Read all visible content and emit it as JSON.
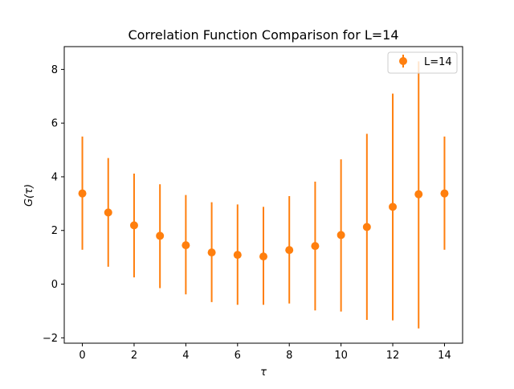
{
  "chart_data": {
    "type": "scatter",
    "title": "Correlation Function Comparison for L=14",
    "xlabel": "τ",
    "ylabel": "G(τ)",
    "xlim": [
      -0.7,
      14.7
    ],
    "ylim": [
      -2.2,
      8.85
    ],
    "xticks": [
      0,
      2,
      4,
      6,
      8,
      10,
      12,
      14
    ],
    "yticks": [
      -2,
      0,
      2,
      4,
      6,
      8
    ],
    "xtick_labels": [
      "0",
      "2",
      "4",
      "6",
      "8",
      "10",
      "12",
      "14"
    ],
    "ytick_labels": [
      "−2",
      "0",
      "2",
      "4",
      "6",
      "8"
    ],
    "grid": false,
    "legend_position": "top-right",
    "series": [
      {
        "name": "L=14",
        "color": "#ff7f0e",
        "marker": "circle",
        "x": [
          0,
          1,
          2,
          3,
          4,
          5,
          6,
          7,
          8,
          9,
          10,
          11,
          12,
          13,
          14
        ],
        "y": [
          3.38,
          2.67,
          2.19,
          1.8,
          1.45,
          1.18,
          1.09,
          1.03,
          1.27,
          1.42,
          1.83,
          2.13,
          2.88,
          3.35,
          3.38
        ],
        "yerr_lower": [
          1.28,
          0.65,
          0.25,
          -0.15,
          -0.38,
          -0.67,
          -0.77,
          -0.77,
          -0.72,
          -0.98,
          -1.02,
          -1.33,
          -1.35,
          -1.65,
          1.28
        ],
        "yerr_upper": [
          5.5,
          4.7,
          4.12,
          3.72,
          3.32,
          3.05,
          2.97,
          2.88,
          3.28,
          3.82,
          4.65,
          5.6,
          7.1,
          8.3,
          5.5
        ]
      }
    ]
  }
}
